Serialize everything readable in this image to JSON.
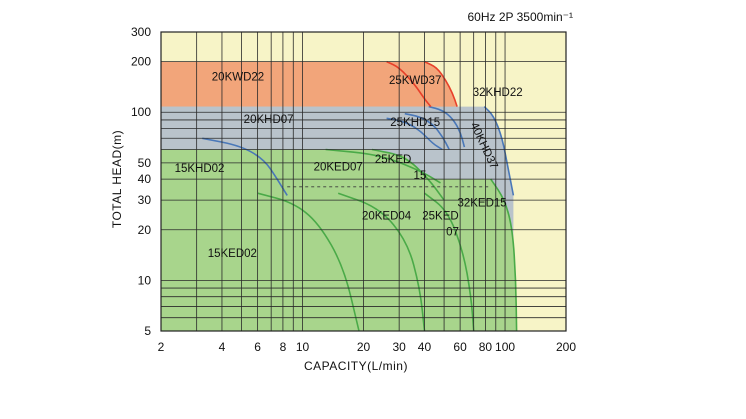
{
  "chart_data": {
    "type": "area",
    "subtitle": "60Hz 2P 3500min⁻¹",
    "xlabel": "CAPACITY(L/min)",
    "ylabel": "TOTAL HEAD(m)",
    "x_scale": "log",
    "y_scale": "log",
    "xlim": [
      2,
      200
    ],
    "ylim": [
      5,
      300
    ],
    "x_ticks": [
      2,
      4,
      6,
      8,
      10,
      20,
      30,
      40,
      60,
      80,
      100,
      200
    ],
    "x_tick_labels": [
      "2",
      "4",
      "6",
      "8",
      "10",
      "20",
      "30",
      "40",
      "60",
      "80",
      "100",
      "200"
    ],
    "y_ticks": [
      5,
      10,
      20,
      30,
      40,
      50,
      100,
      200,
      300
    ],
    "y_tick_labels": [
      "5",
      "10",
      "20",
      "30",
      "40",
      "50",
      "100",
      "200",
      "300"
    ],
    "grid": true,
    "colors": {
      "background": "#f7f4c7",
      "kwd": "#f2a57a",
      "khd": "#b9c3cb",
      "ked": "#a8d58c",
      "kwd_curve": "#e8402a",
      "khd_curve": "#4a78b8",
      "ked_curve": "#4aaa48",
      "grid": "#2a2a2a"
    },
    "series": [
      {
        "name": "15KED02",
        "group": "KED",
        "values": [
          [
            2,
            33
          ],
          [
            6,
            33
          ],
          [
            9,
            29
          ],
          [
            12,
            22
          ],
          [
            16,
            12
          ],
          [
            19,
            5
          ]
        ]
      },
      {
        "name": "20KED04",
        "group": "KED",
        "values": [
          [
            2,
            33
          ],
          [
            15,
            33
          ],
          [
            24,
            27
          ],
          [
            33,
            17
          ],
          [
            38,
            9
          ],
          [
            40,
            5
          ]
        ]
      },
      {
        "name": "25KED07",
        "group": "KED",
        "values": [
          [
            2,
            33
          ],
          [
            40,
            33
          ],
          [
            52,
            26
          ],
          [
            62,
            15
          ],
          [
            68,
            8
          ],
          [
            70,
            5
          ]
        ]
      },
      {
        "name": "20KED07",
        "group": "KED",
        "values": [
          [
            2,
            60
          ],
          [
            13,
            60
          ],
          [
            24,
            56
          ],
          [
            38,
            45
          ],
          [
            48,
            38
          ]
        ]
      },
      {
        "name": "25KED15",
        "group": "KED",
        "values": [
          [
            2,
            60
          ],
          [
            22,
            60
          ],
          [
            32,
            55
          ],
          [
            42,
            40
          ],
          [
            50,
            30
          ]
        ]
      },
      {
        "name": "32KED15",
        "group": "KED",
        "values": [
          [
            2,
            40
          ],
          [
            85,
            40
          ],
          [
            100,
            30
          ],
          [
            109,
            20
          ],
          [
            113,
            10
          ],
          [
            114,
            5
          ]
        ]
      },
      {
        "name": "15KHD02",
        "group": "KHD",
        "values": [
          [
            2,
            70
          ],
          [
            3.2,
            70
          ],
          [
            5,
            63
          ],
          [
            6.5,
            52
          ],
          [
            7.5,
            40
          ],
          [
            8.4,
            32
          ]
        ]
      },
      {
        "name": "20KHD07",
        "group": "KHD",
        "values": [
          [
            2,
            92
          ],
          [
            26,
            92
          ],
          [
            32,
            88
          ],
          [
            38,
            78
          ],
          [
            44,
            65
          ],
          [
            49,
            60
          ]
        ]
      },
      {
        "name": "25KHD15",
        "group": "KHD",
        "values": [
          [
            2,
            98
          ],
          [
            32,
            98
          ],
          [
            38,
            94
          ],
          [
            44,
            85
          ],
          [
            49,
            72
          ],
          [
            53,
            60
          ]
        ]
      },
      {
        "name": "32KHD22",
        "group": "KHD",
        "values": [
          [
            2,
            108
          ],
          [
            42,
            108
          ],
          [
            49,
            103
          ],
          [
            55,
            92
          ],
          [
            60,
            77
          ],
          [
            63,
            62
          ]
        ]
      },
      {
        "name": "40KHD37",
        "group": "KHD",
        "values": [
          [
            2,
            108
          ],
          [
            79,
            108
          ],
          [
            88,
            95
          ],
          [
            97,
            70
          ],
          [
            104,
            45
          ],
          [
            110,
            32
          ]
        ]
      },
      {
        "name": "20KWD22",
        "group": "KWD",
        "values": [
          [
            2,
            200
          ],
          [
            26,
            200
          ],
          [
            30,
            185
          ],
          [
            36,
            145
          ],
          [
            40,
            120
          ],
          [
            43,
            108
          ]
        ]
      },
      {
        "name": "25KWD37",
        "group": "KWD",
        "values": [
          [
            2,
            200
          ],
          [
            40,
            200
          ],
          [
            46,
            185
          ],
          [
            51,
            155
          ],
          [
            55,
            130
          ],
          [
            58,
            108
          ]
        ]
      }
    ],
    "annotations": [
      {
        "text": "20KWD22",
        "x": 4.8,
        "y": 154
      },
      {
        "text": "25KWD37",
        "x": 36,
        "y": 147
      },
      {
        "text": "32KHD22",
        "x": 92,
        "y": 125
      },
      {
        "text": "20KHD07",
        "x": 6.8,
        "y": 86
      },
      {
        "text": "25KHD15",
        "x": 36,
        "y": 83
      },
      {
        "text": "40KHD37",
        "x": 76,
        "y": 62,
        "rotate": 65
      },
      {
        "text": "15KHD02",
        "x": 3.1,
        "y": 44
      },
      {
        "text": "20KED07",
        "x": 15,
        "y": 45
      },
      {
        "text": "25KED",
        "x": 28,
        "y": 50
      },
      {
        "text": "15",
        "x": 38,
        "y": 40
      },
      {
        "text": "20KED04",
        "x": 26,
        "y": 23
      },
      {
        "text": "25KED",
        "x": 48,
        "y": 23
      },
      {
        "text": "07",
        "x": 55,
        "y": 18.5
      },
      {
        "text": "32KED15",
        "x": 77,
        "y": 27.5
      },
      {
        "text": "15KED02",
        "x": 4.5,
        "y": 13.8
      }
    ]
  }
}
